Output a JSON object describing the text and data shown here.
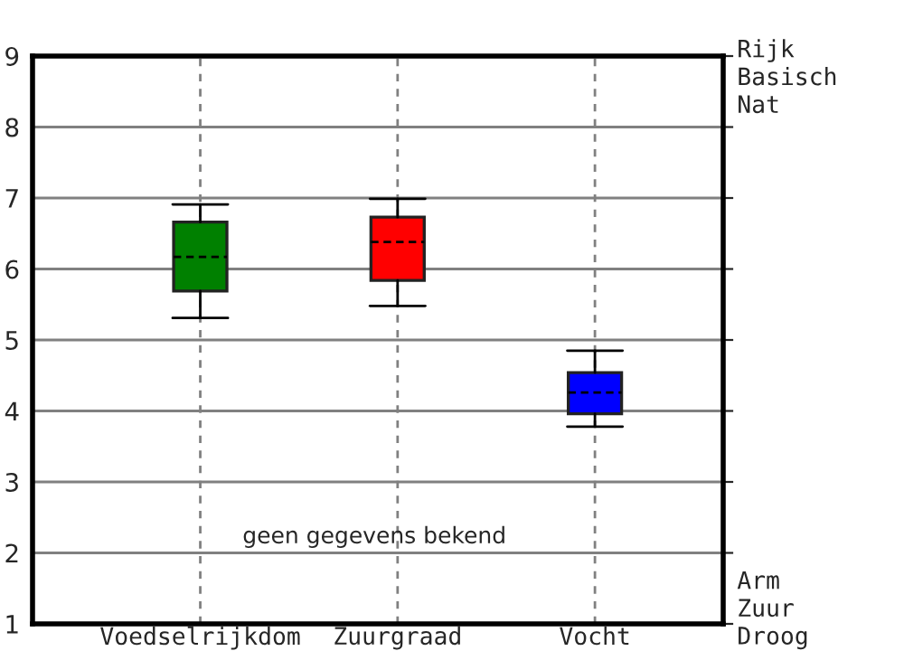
{
  "chart_data": {
    "type": "box",
    "categories": [
      "Voedselrijkdom",
      "Zuurgraad",
      "Vocht"
    ],
    "boxes": [
      {
        "low": 5.31,
        "q1": 5.69,
        "median": 6.17,
        "q3": 6.66,
        "high": 6.91
      },
      {
        "low": 5.48,
        "q1": 5.84,
        "median": 6.38,
        "q3": 6.73,
        "high": 6.99
      },
      {
        "low": 3.78,
        "q1": 3.96,
        "median": 4.26,
        "q3": 4.54,
        "high": 4.85
      }
    ],
    "colors": [
      "#008000",
      "#ff0000",
      "#0000ff"
    ],
    "ylim": [
      1,
      9
    ],
    "yticks": [
      1,
      2,
      3,
      4,
      5,
      6,
      7,
      8,
      9
    ],
    "annotations": [
      "geen gegevens bekend",
      "Rijk\nBasisch\nNat",
      "Arm\nZuur\nDroog"
    ],
    "grid": true
  }
}
